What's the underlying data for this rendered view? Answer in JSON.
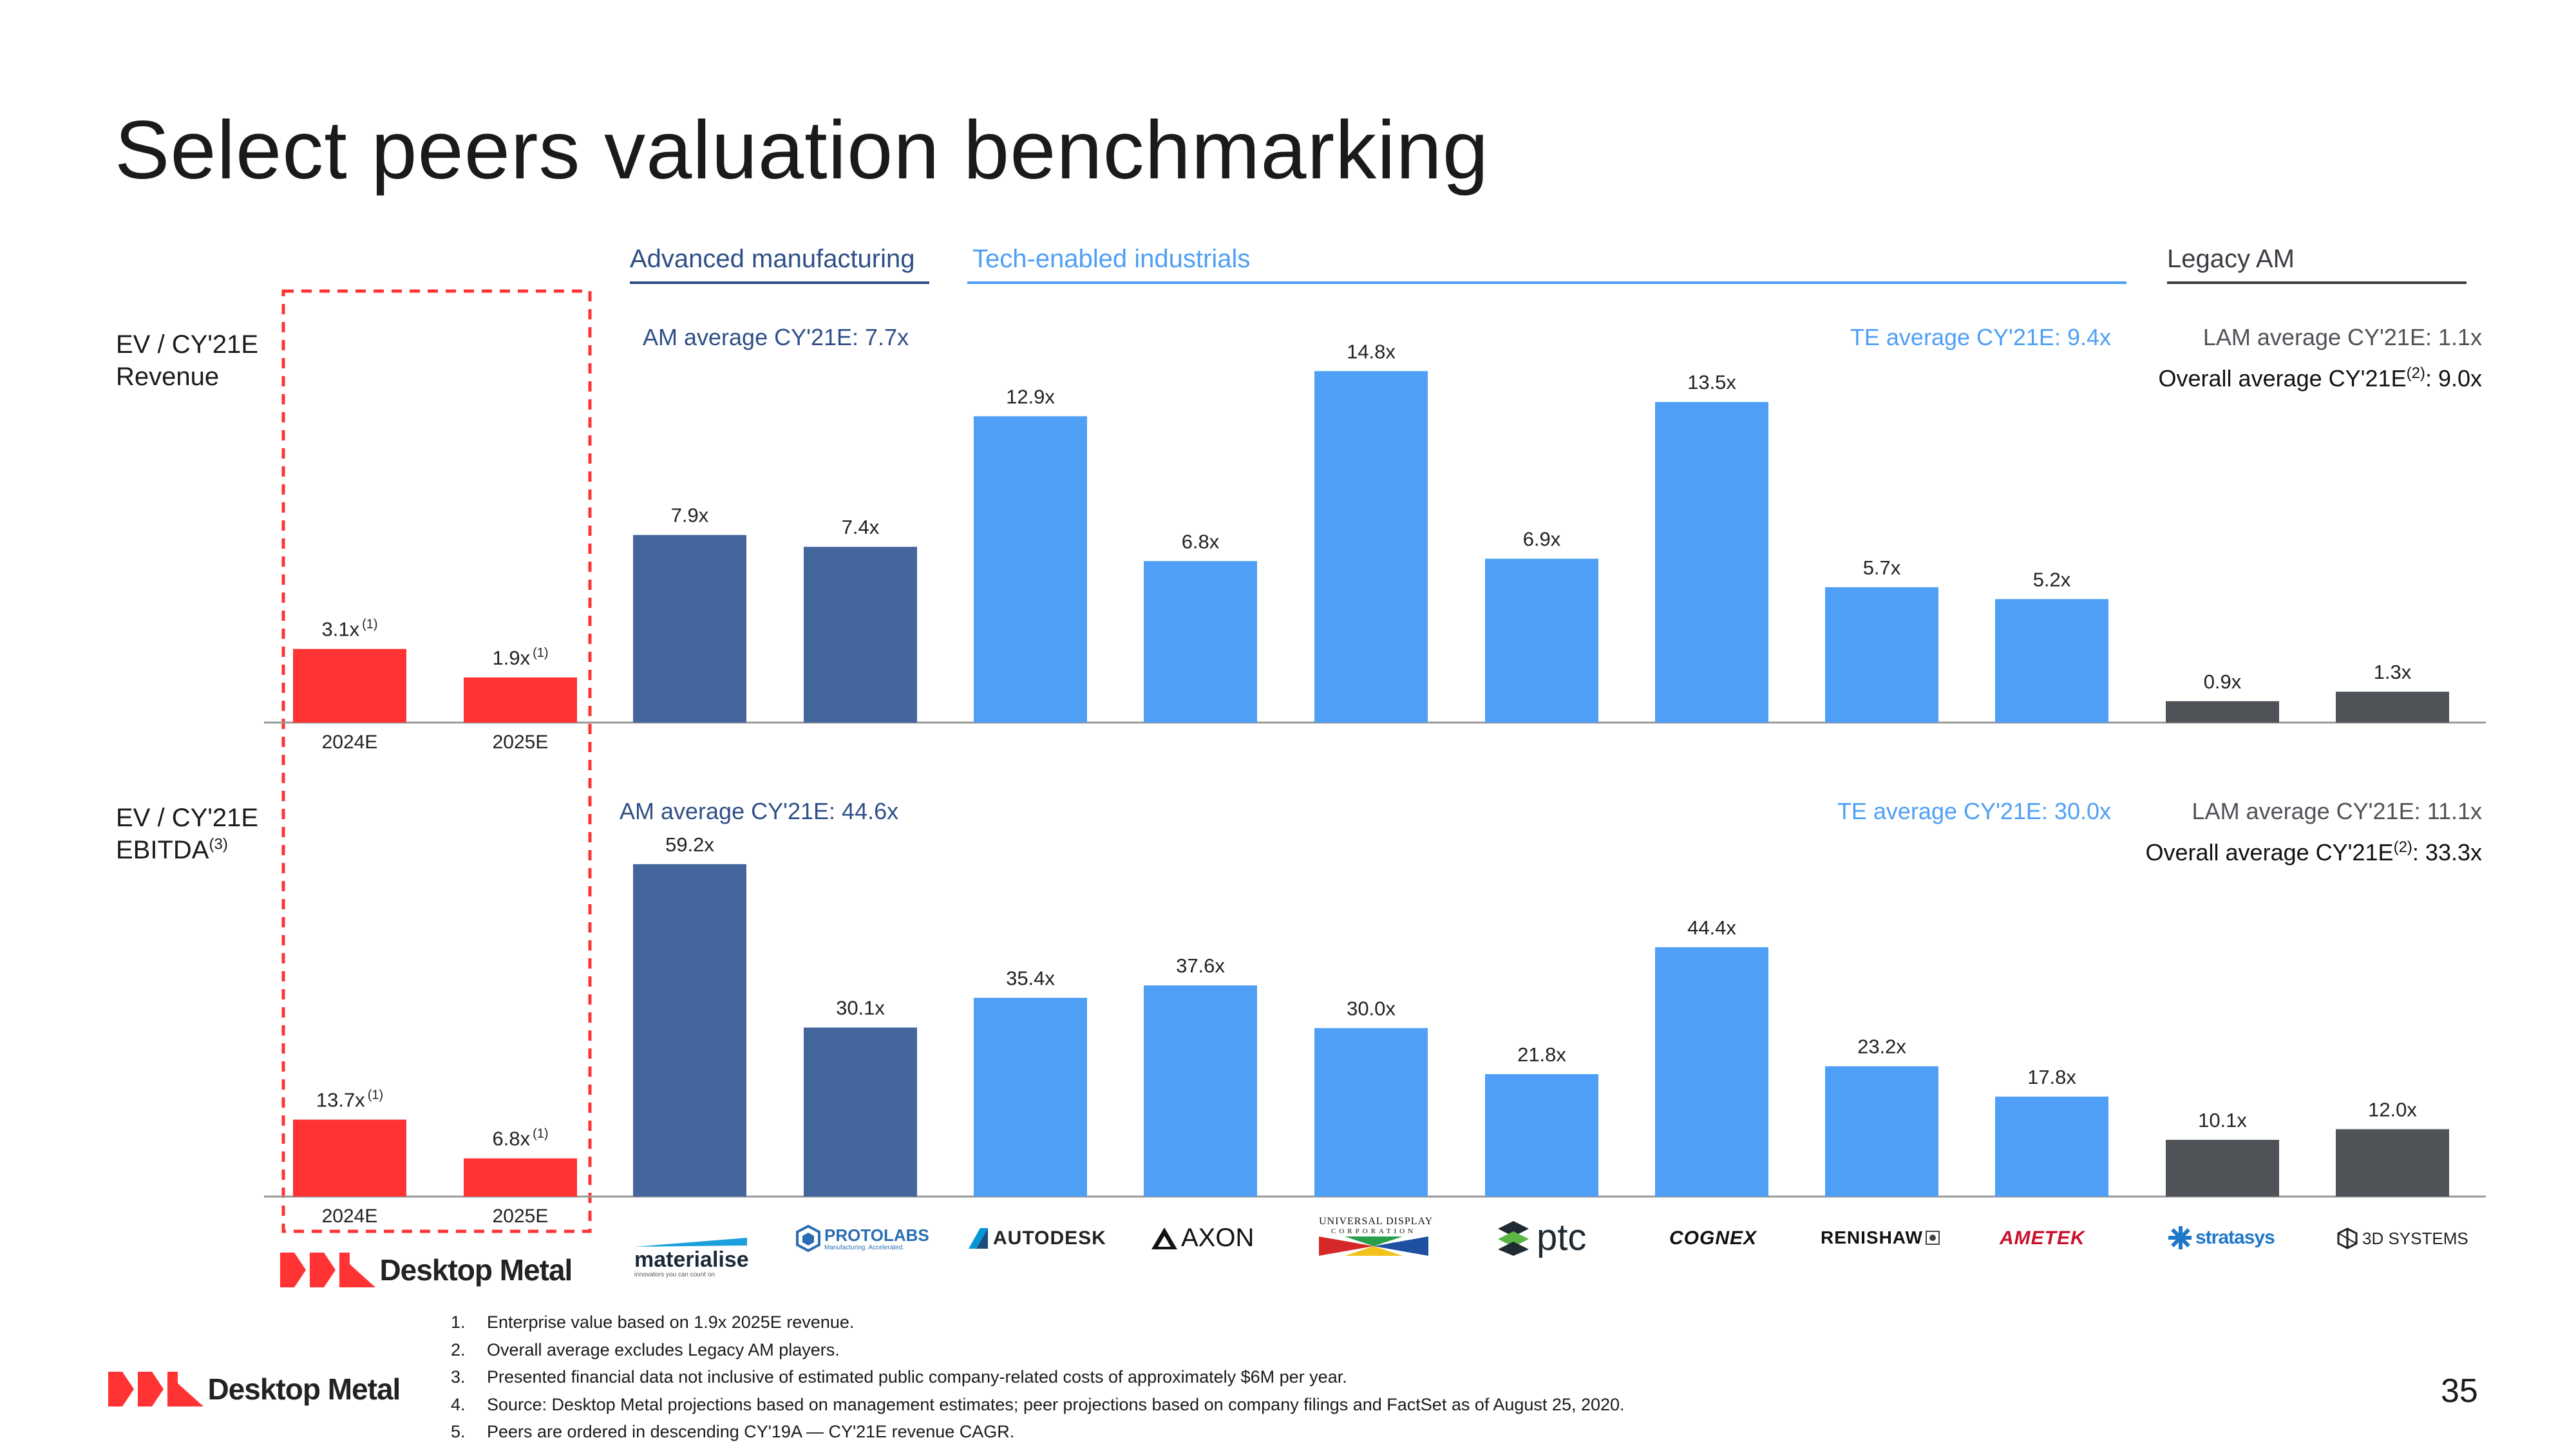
{
  "title": "Select peers valuation benchmarking",
  "page_number": "35",
  "row_labels": {
    "revenue_line1": "EV / CY'21E",
    "revenue_line2": "Revenue",
    "ebitda_line1": "EV / CY'21E",
    "ebitda_line2": "EBITDA",
    "ebitda_sup": "(3)"
  },
  "groups": {
    "advanced_manufacturing": "Advanced manufacturing",
    "tech_enabled_industrials": "Tech-enabled industrials",
    "legacy_am": "Legacy AM"
  },
  "averages": {
    "revenue": {
      "am": "AM average CY'21E: 7.7x",
      "te": "TE average CY'21E: 9.4x",
      "lam": "LAM average CY'21E: 1.1x",
      "overall_prefix": "Overall average CY'21E",
      "overall_sup": "(2)",
      "overall_suffix": ": 9.0x"
    },
    "ebitda": {
      "am": "AM average CY'21E: 44.6x",
      "te": "TE average CY'21E: 30.0x",
      "lam": "LAM average CY'21E: 11.1x",
      "overall_prefix": "Overall average CY'21E",
      "overall_sup": "(2)",
      "overall_suffix": ": 33.3x"
    }
  },
  "colors": {
    "desktop_metal": "#ff3333",
    "advanced_manufacturing": "#44669c",
    "tech_enabled_industrials": "#4e9ff5",
    "legacy_am": "#4f5257",
    "group_text_am": "#2f4f86",
    "group_text_te": "#4e9ff5"
  },
  "chart_data": [
    {
      "type": "bar",
      "metric": "EV / CY'21E Revenue",
      "categories": [
        "Desktop Metal 2024E",
        "Desktop Metal 2025E",
        "Materialise",
        "Protolabs",
        "Autodesk",
        "Axon",
        "Universal Display",
        "PTC",
        "Cognex",
        "Renishaw",
        "Ametek",
        "Stratasys",
        "3D Systems"
      ],
      "values": [
        3.1,
        1.9,
        7.9,
        7.4,
        12.9,
        6.8,
        14.8,
        6.9,
        13.5,
        5.7,
        5.2,
        0.9,
        1.3
      ],
      "labels": [
        "3.1x",
        "1.9x",
        "7.9x",
        "7.4x",
        "12.9x",
        "6.8x",
        "14.8x",
        "6.9x",
        "13.5x",
        "5.7x",
        "5.2x",
        "0.9x",
        "1.3x"
      ],
      "label_sups": [
        "(1)",
        "(1)",
        "",
        "",
        "",
        "",
        "",
        "",
        "",
        "",
        "",
        "",
        ""
      ],
      "groups": [
        "desktop_metal",
        "desktop_metal",
        "advanced_manufacturing",
        "advanced_manufacturing",
        "tech_enabled_industrials",
        "tech_enabled_industrials",
        "tech_enabled_industrials",
        "tech_enabled_industrials",
        "tech_enabled_industrials",
        "tech_enabled_industrials",
        "tech_enabled_industrials",
        "legacy_am",
        "legacy_am"
      ],
      "ylim": [
        0,
        16
      ]
    },
    {
      "type": "bar",
      "metric": "EV / CY'21E EBITDA",
      "categories": [
        "Desktop Metal 2024E",
        "Desktop Metal 2025E",
        "Materialise",
        "Protolabs",
        "Autodesk",
        "Axon",
        "Universal Display",
        "PTC",
        "Cognex",
        "Renishaw",
        "Ametek",
        "Stratasys",
        "3D Systems"
      ],
      "values": [
        13.7,
        6.8,
        59.2,
        30.1,
        35.4,
        37.6,
        30.0,
        21.8,
        44.4,
        23.2,
        17.8,
        10.1,
        12.0
      ],
      "labels": [
        "13.7x",
        "6.8x",
        "59.2x",
        "30.1x",
        "35.4x",
        "37.6x",
        "30.0x",
        "21.8x",
        "44.4x",
        "23.2x",
        "17.8x",
        "10.1x",
        "12.0x"
      ],
      "label_sups": [
        "(1)",
        "(1)",
        "",
        "",
        "",
        "",
        "",
        "",
        "",
        "",
        "",
        "",
        ""
      ],
      "groups": [
        "desktop_metal",
        "desktop_metal",
        "advanced_manufacturing",
        "advanced_manufacturing",
        "tech_enabled_industrials",
        "tech_enabled_industrials",
        "tech_enabled_industrials",
        "tech_enabled_industrials",
        "tech_enabled_industrials",
        "tech_enabled_industrials",
        "tech_enabled_industrials",
        "legacy_am",
        "legacy_am"
      ],
      "ylim": [
        0,
        64
      ]
    }
  ],
  "desktop_metal_years": [
    "2024E",
    "2025E"
  ],
  "logos": {
    "desktop_metal": "Desktop Metal",
    "materialise": "materialise",
    "materialise_tagline": "innovators you can count on",
    "protolabs": "PROTOLABS",
    "protolabs_tagline": "Manufacturing. Accelerated.",
    "autodesk": "AUTODESK",
    "axon": "AXON",
    "universal_display_1": "UNIVERSAL DISPLAY",
    "universal_display_2": "CORPORATION",
    "ptc": "ptc",
    "cognex": "COGNEX",
    "renishaw": "RENISHAW",
    "ametek": "AMETEK",
    "stratasys": "stratasys",
    "three_d_systems": "3D SYSTEMS"
  },
  "footnotes": [
    {
      "n": "1.",
      "text": "Enterprise value based on 1.9x 2025E revenue."
    },
    {
      "n": "2.",
      "text": "Overall average excludes Legacy AM players."
    },
    {
      "n": "3.",
      "text": "Presented financial data not inclusive of estimated public company-related costs of approximately $6M per year."
    },
    {
      "n": "4.",
      "text": "Source: Desktop Metal projections based on management estimates; peer projections based on company filings and FactSet as of August 25, 2020."
    },
    {
      "n": "5.",
      "text": "Peers are ordered in descending CY'19A — CY'21E revenue CAGR."
    }
  ]
}
